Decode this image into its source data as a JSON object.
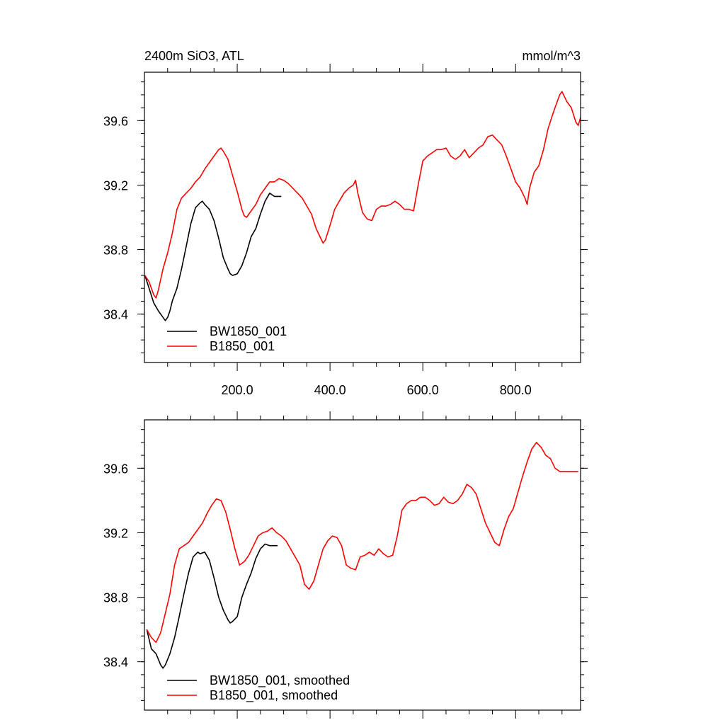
{
  "colors": {
    "bw_series": "#000000",
    "b_series": "#ff0000",
    "axis": "#000000"
  },
  "chart_data": [
    {
      "type": "line",
      "title": "2400m SiO3, ATL",
      "units": "mmol/m^3",
      "xlabel": "",
      "ylabel": "",
      "xlim": [
        0,
        940
      ],
      "ylim": [
        38.1,
        39.9
      ],
      "xticks": [
        200,
        400,
        600,
        800
      ],
      "xtick_labels": [
        "200.0",
        "400.0",
        "600.0",
        "800.0"
      ],
      "yticks": [
        38.4,
        38.8,
        39.2,
        39.6
      ],
      "ytick_labels": [
        "38.4",
        "38.8",
        "39.2",
        "39.6"
      ],
      "grid": false,
      "legend_position": "bottom-left",
      "series": [
        {
          "name": "BW1850_001",
          "color": "#000000",
          "x": [
            1,
            10,
            20,
            30,
            40,
            45,
            50,
            55,
            60,
            70,
            80,
            90,
            100,
            110,
            120,
            125,
            130,
            140,
            150,
            160,
            170,
            180,
            185,
            190,
            200,
            210,
            220,
            230,
            240,
            250,
            260,
            270,
            280,
            290,
            295
          ],
          "y": [
            38.64,
            38.56,
            38.47,
            38.42,
            38.38,
            38.36,
            38.38,
            38.42,
            38.48,
            38.56,
            38.68,
            38.82,
            38.96,
            39.06,
            39.09,
            39.1,
            39.08,
            39.05,
            38.98,
            38.87,
            38.75,
            38.68,
            38.65,
            38.64,
            38.65,
            38.7,
            38.78,
            38.88,
            38.93,
            39.02,
            39.1,
            39.15,
            39.13,
            39.13,
            39.13
          ]
        },
        {
          "name": "B1850_001",
          "color": "#ff0000",
          "x": [
            1,
            10,
            20,
            25,
            30,
            40,
            50,
            60,
            70,
            80,
            90,
            100,
            110,
            120,
            130,
            140,
            150,
            160,
            165,
            170,
            180,
            190,
            200,
            210,
            215,
            220,
            230,
            240,
            250,
            260,
            270,
            280,
            290,
            300,
            310,
            320,
            330,
            340,
            350,
            360,
            370,
            380,
            385,
            390,
            400,
            410,
            420,
            430,
            440,
            450,
            455,
            460,
            470,
            480,
            490,
            500,
            510,
            520,
            530,
            540,
            550,
            560,
            570,
            580,
            590,
            600,
            610,
            620,
            630,
            640,
            650,
            660,
            670,
            680,
            690,
            700,
            710,
            720,
            730,
            740,
            750,
            760,
            770,
            780,
            790,
            800,
            810,
            820,
            825,
            830,
            840,
            850,
            860,
            870,
            880,
            890,
            895,
            900,
            910,
            920,
            930,
            935,
            940
          ],
          "y": [
            38.64,
            38.6,
            38.52,
            38.5,
            38.55,
            38.68,
            38.78,
            38.9,
            39.05,
            39.12,
            39.15,
            39.18,
            39.22,
            39.25,
            39.3,
            39.34,
            39.38,
            39.42,
            39.43,
            39.41,
            39.36,
            39.26,
            39.16,
            39.05,
            39.01,
            39.0,
            39.04,
            39.08,
            39.14,
            39.18,
            39.22,
            39.22,
            39.24,
            39.23,
            39.21,
            39.18,
            39.15,
            39.12,
            39.07,
            39.02,
            38.93,
            38.87,
            38.84,
            38.86,
            38.95,
            39.05,
            39.1,
            39.15,
            39.18,
            39.2,
            39.23,
            39.15,
            39.03,
            38.99,
            38.98,
            39.05,
            39.07,
            39.07,
            39.08,
            39.1,
            39.08,
            39.05,
            39.05,
            39.04,
            39.2,
            39.35,
            39.38,
            39.4,
            39.42,
            39.42,
            39.43,
            39.38,
            39.36,
            39.38,
            39.42,
            39.37,
            39.4,
            39.43,
            39.45,
            39.5,
            39.51,
            39.48,
            39.45,
            39.38,
            39.3,
            39.22,
            39.18,
            39.12,
            39.08,
            39.18,
            39.28,
            39.32,
            39.42,
            39.55,
            39.64,
            39.72,
            39.76,
            39.78,
            39.72,
            39.68,
            39.59,
            39.57,
            39.62
          ]
        }
      ]
    },
    {
      "type": "line",
      "title": "",
      "xlabel": "",
      "ylabel": "",
      "xlim": [
        0,
        940
      ],
      "ylim": [
        38.1,
        39.9
      ],
      "xticks": [
        200,
        400,
        600,
        800
      ],
      "xtick_labels": [],
      "yticks": [
        38.4,
        38.8,
        39.2,
        39.6
      ],
      "ytick_labels": [
        "38.4",
        "38.8",
        "39.2",
        "39.6"
      ],
      "grid": false,
      "legend_position": "bottom-left",
      "series": [
        {
          "name": "BW1850_001, smoothed",
          "color": "#000000",
          "x": [
            5,
            15,
            25,
            35,
            40,
            45,
            55,
            65,
            75,
            85,
            95,
            105,
            115,
            120,
            130,
            140,
            150,
            160,
            170,
            180,
            185,
            190,
            200,
            210,
            220,
            230,
            240,
            250,
            260,
            270,
            280,
            287
          ],
          "y": [
            38.6,
            38.48,
            38.45,
            38.38,
            38.36,
            38.38,
            38.45,
            38.55,
            38.68,
            38.82,
            38.95,
            39.05,
            39.08,
            39.07,
            39.08,
            39.03,
            38.92,
            38.8,
            38.72,
            38.66,
            38.64,
            38.65,
            38.68,
            38.8,
            38.88,
            38.95,
            39.04,
            39.1,
            39.13,
            39.12,
            39.12,
            39.12
          ]
        },
        {
          "name": "B1850_001, smoothed",
          "color": "#ff0000",
          "x": [
            5,
            15,
            25,
            35,
            45,
            55,
            65,
            75,
            85,
            95,
            105,
            115,
            125,
            135,
            145,
            155,
            165,
            175,
            185,
            195,
            205,
            215,
            225,
            235,
            245,
            255,
            265,
            275,
            285,
            295,
            305,
            315,
            325,
            335,
            345,
            355,
            365,
            375,
            385,
            395,
            405,
            415,
            425,
            435,
            445,
            455,
            465,
            475,
            485,
            495,
            505,
            515,
            525,
            535,
            545,
            555,
            565,
            575,
            585,
            595,
            605,
            615,
            625,
            635,
            645,
            655,
            665,
            675,
            685,
            695,
            705,
            715,
            725,
            735,
            745,
            755,
            765,
            775,
            785,
            795,
            805,
            815,
            825,
            835,
            845,
            855,
            865,
            875,
            885,
            895,
            905,
            915,
            925,
            935
          ],
          "y": [
            38.6,
            38.55,
            38.52,
            38.58,
            38.7,
            38.82,
            39.0,
            39.1,
            39.12,
            39.14,
            39.18,
            39.22,
            39.26,
            39.32,
            39.37,
            39.41,
            39.4,
            39.33,
            39.22,
            39.1,
            39.0,
            39.02,
            39.06,
            39.12,
            39.18,
            39.2,
            39.21,
            39.23,
            39.2,
            39.18,
            39.15,
            39.1,
            39.05,
            39.0,
            38.88,
            38.85,
            38.9,
            39.0,
            39.1,
            39.15,
            39.18,
            39.17,
            39.12,
            39.0,
            38.98,
            38.97,
            39.05,
            39.06,
            39.08,
            39.06,
            39.1,
            39.07,
            39.05,
            39.06,
            39.18,
            39.34,
            39.38,
            39.4,
            39.4,
            39.42,
            39.42,
            39.4,
            39.37,
            39.38,
            39.42,
            39.39,
            39.38,
            39.4,
            39.44,
            39.5,
            39.48,
            39.44,
            39.35,
            39.26,
            39.2,
            39.14,
            39.12,
            39.22,
            39.3,
            39.35,
            39.45,
            39.55,
            39.64,
            39.72,
            39.76,
            39.73,
            39.68,
            39.66,
            39.6,
            39.58,
            39.58,
            39.58,
            39.58,
            39.58
          ]
        }
      ]
    }
  ]
}
